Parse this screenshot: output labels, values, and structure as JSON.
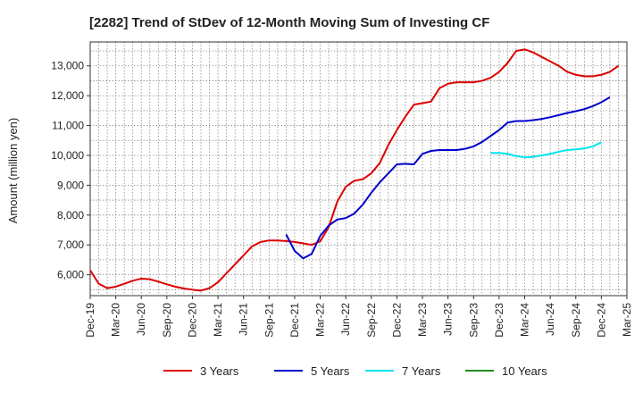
{
  "chart_data": {
    "type": "line",
    "title": "[2282]  Trend of StDev of 12-Month Moving Sum of Investing CF",
    "xlabel": "",
    "ylabel": "Amount (million yen)",
    "ylim": [
      5300,
      13800
    ],
    "yticks": [
      "6,000",
      "7,000",
      "8,000",
      "9,000",
      "10,000",
      "11,000",
      "12,000",
      "13,000"
    ],
    "ytick_values": [
      6000,
      7000,
      8000,
      9000,
      10000,
      11000,
      12000,
      13000
    ],
    "xticks": [
      "Dec-19",
      "Mar-20",
      "Jun-20",
      "Sep-20",
      "Dec-20",
      "Mar-21",
      "Jun-21",
      "Sep-21",
      "Dec-21",
      "Mar-22",
      "Jun-22",
      "Sep-22",
      "Dec-22",
      "Mar-23",
      "Jun-23",
      "Sep-23",
      "Dec-23",
      "Mar-24",
      "Jun-24",
      "Sep-24",
      "Dec-24",
      "Mar-25"
    ],
    "grid": true,
    "legend_position": "bottom",
    "series": [
      {
        "name": "3 Years",
        "color": "#dd0000",
        "start": "Dec-19",
        "values": [
          6150,
          5700,
          5550,
          5600,
          5700,
          5800,
          5870,
          5850,
          5770,
          5680,
          5600,
          5540,
          5500,
          5470,
          5550,
          5750,
          6050,
          6350,
          6650,
          6950,
          7100,
          7150,
          7150,
          7130,
          7100,
          7050,
          7000,
          7120,
          7600,
          8450,
          8950,
          9150,
          9200,
          9400,
          9750,
          10350,
          10850,
          11300,
          11700,
          11750,
          11800,
          12250,
          12400,
          12450,
          12450,
          12450,
          12500,
          12600,
          12800,
          13100,
          13500,
          13550,
          13450,
          13300,
          13150,
          13000,
          12800,
          12700,
          12650,
          12650,
          12700,
          12800,
          13000
        ]
      },
      {
        "name": "5 Years",
        "color": "#0000cc",
        "start": "Nov-21",
        "values": [
          7350,
          6800,
          6550,
          6700,
          7300,
          7650,
          7850,
          7900,
          8050,
          8350,
          8750,
          9100,
          9400,
          9700,
          9720,
          9700,
          10050,
          10150,
          10180,
          10180,
          10180,
          10220,
          10300,
          10450,
          10650,
          10850,
          11100,
          11150,
          11150,
          11180,
          11220,
          11280,
          11350,
          11420,
          11480,
          11550,
          11650,
          11780,
          11950
        ]
      },
      {
        "name": "7 Years",
        "color": "#00e5ee",
        "start": "Nov-23",
        "values": [
          10080,
          10080,
          10050,
          9980,
          9930,
          9950,
          10000,
          10050,
          10120,
          10180,
          10200,
          10230,
          10300,
          10440
        ]
      },
      {
        "name": "10 Years",
        "color": "#228b22",
        "start": "",
        "values": []
      }
    ]
  }
}
